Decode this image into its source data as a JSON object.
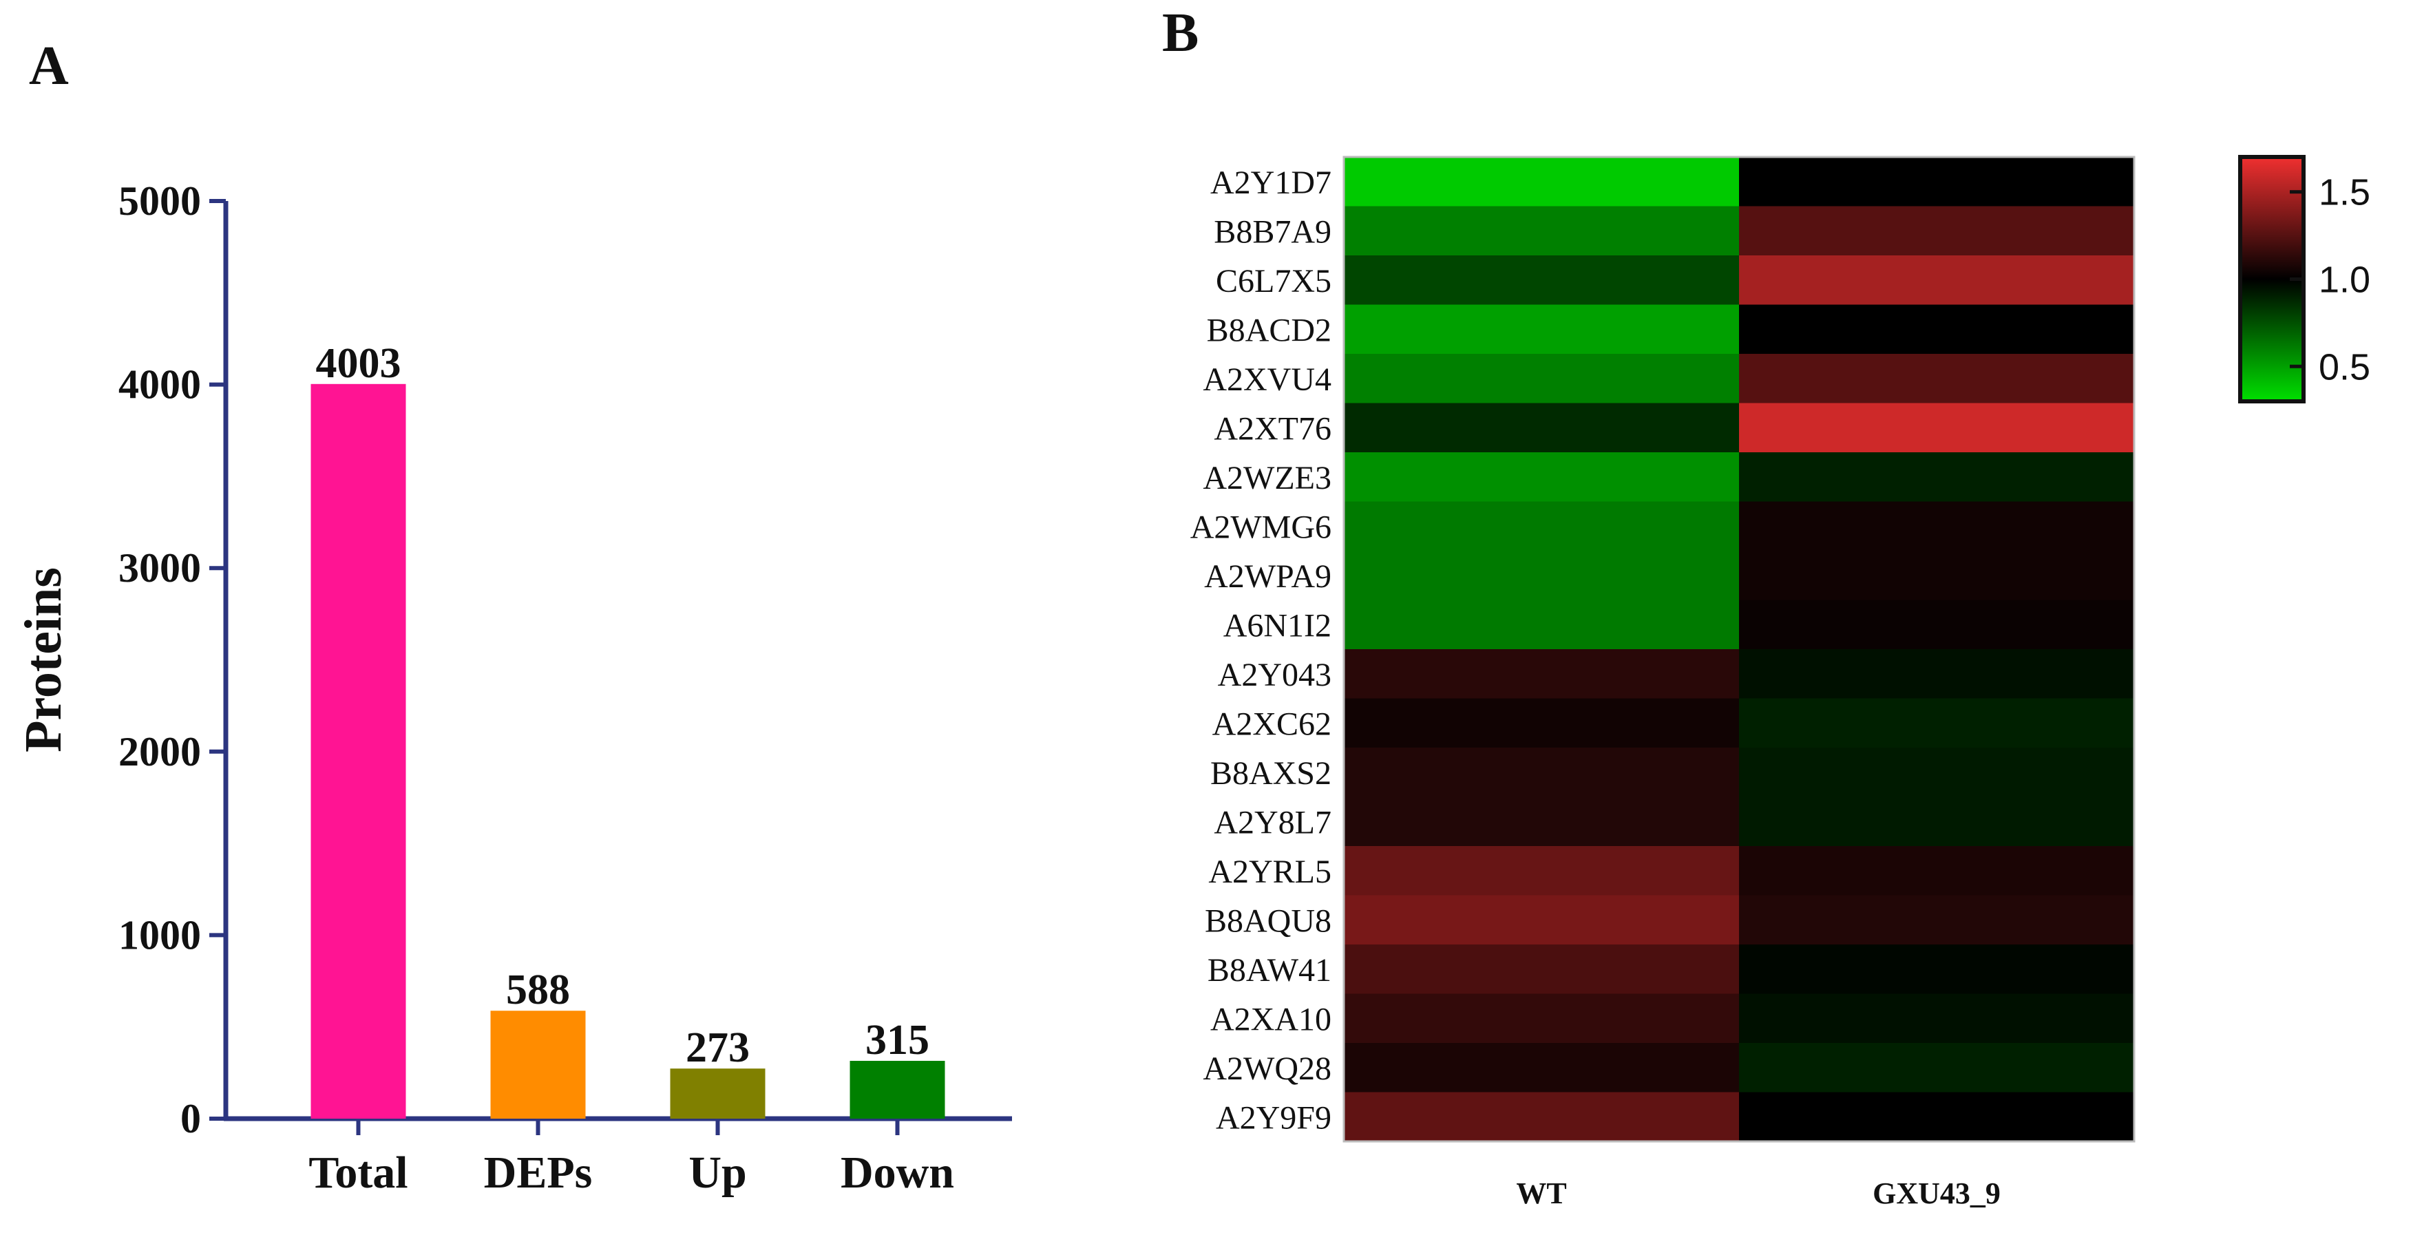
{
  "chart_data": [
    {
      "type": "bar",
      "panel": "A",
      "title": "",
      "xlabel": "",
      "ylabel": "Proteins",
      "ylim": [
        0,
        5000
      ],
      "yticks": [
        0,
        1000,
        2000,
        3000,
        4000,
        5000
      ],
      "categories": [
        "Total",
        "DEPs",
        "Up",
        "Down"
      ],
      "values": [
        4003,
        588,
        273,
        315
      ],
      "colors": [
        "#ff1493",
        "#ff8c00",
        "#808000",
        "#008000"
      ]
    },
    {
      "type": "heatmap",
      "panel": "B",
      "title": "",
      "columns": [
        "WT",
        "GXU43_9"
      ],
      "rows": [
        "A2Y1D7",
        "B8B7A9",
        "C6L7X5",
        "B8ACD2",
        "A2XVU4",
        "A2XT76",
        "A2WZE3",
        "A2WMG6",
        "A2WPA9",
        "A6N1I2",
        "A2Y043",
        "A2XC62",
        "B8AXS2",
        "A2Y8L7",
        "A2YRL5",
        "B8AQU8",
        "B8AW41",
        "A2XA10",
        "A2WQ28",
        "A2Y9F9"
      ],
      "values": [
        [
          0.37,
          1.0
        ],
        [
          0.6,
          1.25
        ],
        [
          0.78,
          1.48
        ],
        [
          0.5,
          1.0
        ],
        [
          0.6,
          1.25
        ],
        [
          0.87,
          1.6
        ],
        [
          0.55,
          0.9
        ],
        [
          0.62,
          1.05
        ],
        [
          0.62,
          1.05
        ],
        [
          0.62,
          1.03
        ],
        [
          1.12,
          0.95
        ],
        [
          1.05,
          0.9
        ],
        [
          1.1,
          0.92
        ],
        [
          1.1,
          0.92
        ],
        [
          1.3,
          1.08
        ],
        [
          1.35,
          1.1
        ],
        [
          1.22,
          0.98
        ],
        [
          1.15,
          0.95
        ],
        [
          1.08,
          0.9
        ],
        [
          1.28,
          1.0
        ]
      ],
      "color_scale": {
        "min": 0.3,
        "mid": 1.0,
        "max": 1.7,
        "low_color": "#00e000",
        "mid_color": "#000000",
        "high_color": "#f03030",
        "ticks": [
          0.5,
          1.0,
          1.5
        ],
        "tick_labels": [
          "0.5",
          "1.0",
          "1.5"
        ]
      }
    }
  ]
}
